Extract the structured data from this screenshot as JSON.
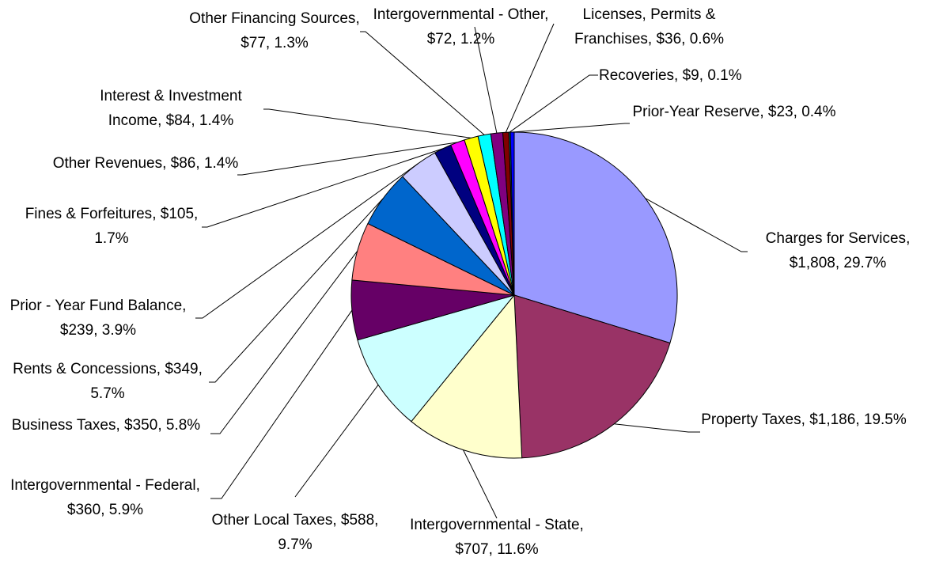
{
  "chart_data": {
    "type": "pie",
    "categories": [
      "Charges for Services",
      "Property Taxes",
      "Intergovernmental - State",
      "Other Local Taxes",
      "Intergovernmental - Federal",
      "Business Taxes",
      "Rents & Concessions",
      "Prior - Year Fund Balance",
      "Fines & Forfeitures",
      "Other Revenues",
      "Interest & Investment Income",
      "Other Financing Sources",
      "Intergovernmental - Other",
      "Licenses, Permits & Franchises",
      "Recoveries",
      "Prior-Year Reserve"
    ],
    "values": [
      1808,
      1186,
      707,
      588,
      360,
      350,
      349,
      239,
      105,
      86,
      84,
      77,
      72,
      36,
      9,
      23
    ],
    "value_labels": [
      "$1,808",
      "$1,186",
      "$707",
      "$588",
      "$360",
      "$350",
      "$349",
      "$239",
      "$105",
      "$86",
      "$84",
      "$77",
      "$72",
      "$36",
      "$9",
      "$23"
    ],
    "percents": [
      29.7,
      19.5,
      11.6,
      9.7,
      5.9,
      5.8,
      5.7,
      3.9,
      1.7,
      1.4,
      1.4,
      1.3,
      1.2,
      0.6,
      0.1,
      0.4
    ],
    "percent_labels": [
      "29.7%",
      "19.5%",
      "11.6%",
      "9.7%",
      "5.9%",
      "5.8%",
      "5.7%",
      "3.9%",
      "1.7%",
      "1.4%",
      "1.4%",
      "1.3%",
      "1.2%",
      "0.6%",
      "0.1%",
      "0.4%"
    ],
    "colors": [
      "#9999ff",
      "#993366",
      "#ffffcc",
      "#ccffff",
      "#660066",
      "#ff8080",
      "#0066cc",
      "#ccccff",
      "#000080",
      "#ff00ff",
      "#ffff00",
      "#00ffff",
      "#800080",
      "#800000",
      "#008080",
      "#0000ff"
    ]
  }
}
